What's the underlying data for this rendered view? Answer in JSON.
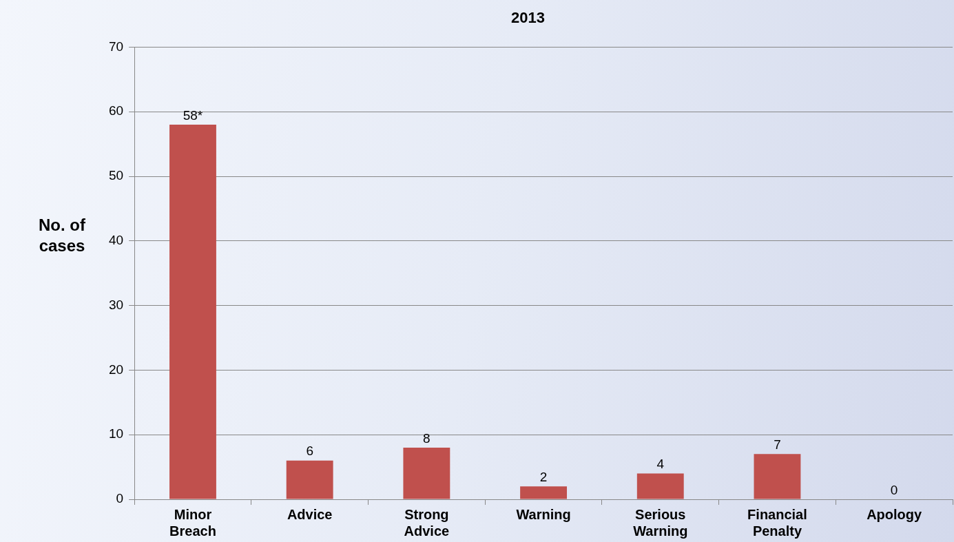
{
  "chart_data": {
    "type": "bar",
    "title": "2013",
    "ylabel": "No. of cases",
    "categories": [
      "Minor Breach",
      "Advice",
      "Strong Advice",
      "Warning",
      "Serious Warning",
      "Financial Penalty",
      "Apology"
    ],
    "values": [
      58,
      6,
      8,
      2,
      4,
      7,
      0
    ],
    "color": "#c0504d",
    "value_labels": [
      "58*",
      "6",
      "8",
      "2",
      "4",
      "7",
      "0"
    ],
    "ylim": [
      0,
      70
    ],
    "yticks": [
      0,
      10,
      20,
      30,
      40,
      50,
      60,
      70
    ],
    "grid": "y",
    "legend": false
  }
}
